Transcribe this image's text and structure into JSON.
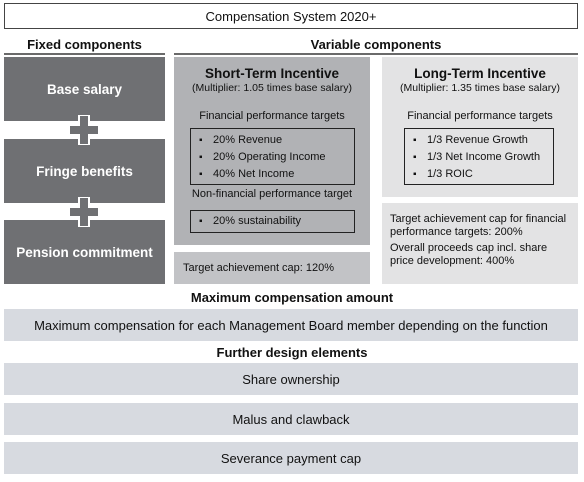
{
  "title": "Compensation System 2020+",
  "fixed": {
    "heading": "Fixed components",
    "items": [
      "Base salary",
      "Fringe benefits",
      "Pension commitment"
    ]
  },
  "variable": {
    "heading": "Variable components",
    "sti": {
      "title": "Short-Term Incentive",
      "multiplier": "(Multiplier: 1.05 times base salary)",
      "financial_heading": "Financial performance targets",
      "financial_items": [
        "20% Revenue",
        "20% Operating Income",
        "40% Net Income"
      ],
      "nonfinancial_heading": "Non-financial performance target",
      "nonfinancial_items": [
        "20% sustainability"
      ],
      "cap": "Target achievement cap: 120%"
    },
    "lti": {
      "title": "Long-Term Incentive",
      "multiplier": "(Multiplier: 1.35 times base salary)",
      "financial_heading": "Financial performance targets",
      "financial_items": [
        "1/3 Revenue Growth",
        "1/3 Net Income Growth",
        "1/3 ROIC"
      ],
      "cap_line1": "Target achievement cap for financial performance targets: 200%",
      "cap_line2": "Overall proceeds cap incl. share price development: 400%"
    }
  },
  "maximum": {
    "heading": "Maximum compensation amount",
    "text": "Maximum compensation for each Management Board member depending on the function"
  },
  "further": {
    "heading": "Further design elements",
    "items": [
      "Share ownership",
      "Malus and clawback",
      "Severance payment cap"
    ]
  },
  "colors": {
    "fixed_box": "#6f7073",
    "sti_panel": "#b1b2b5",
    "lti_panel": "#e3e3e4",
    "bars": "#d7dae0"
  }
}
